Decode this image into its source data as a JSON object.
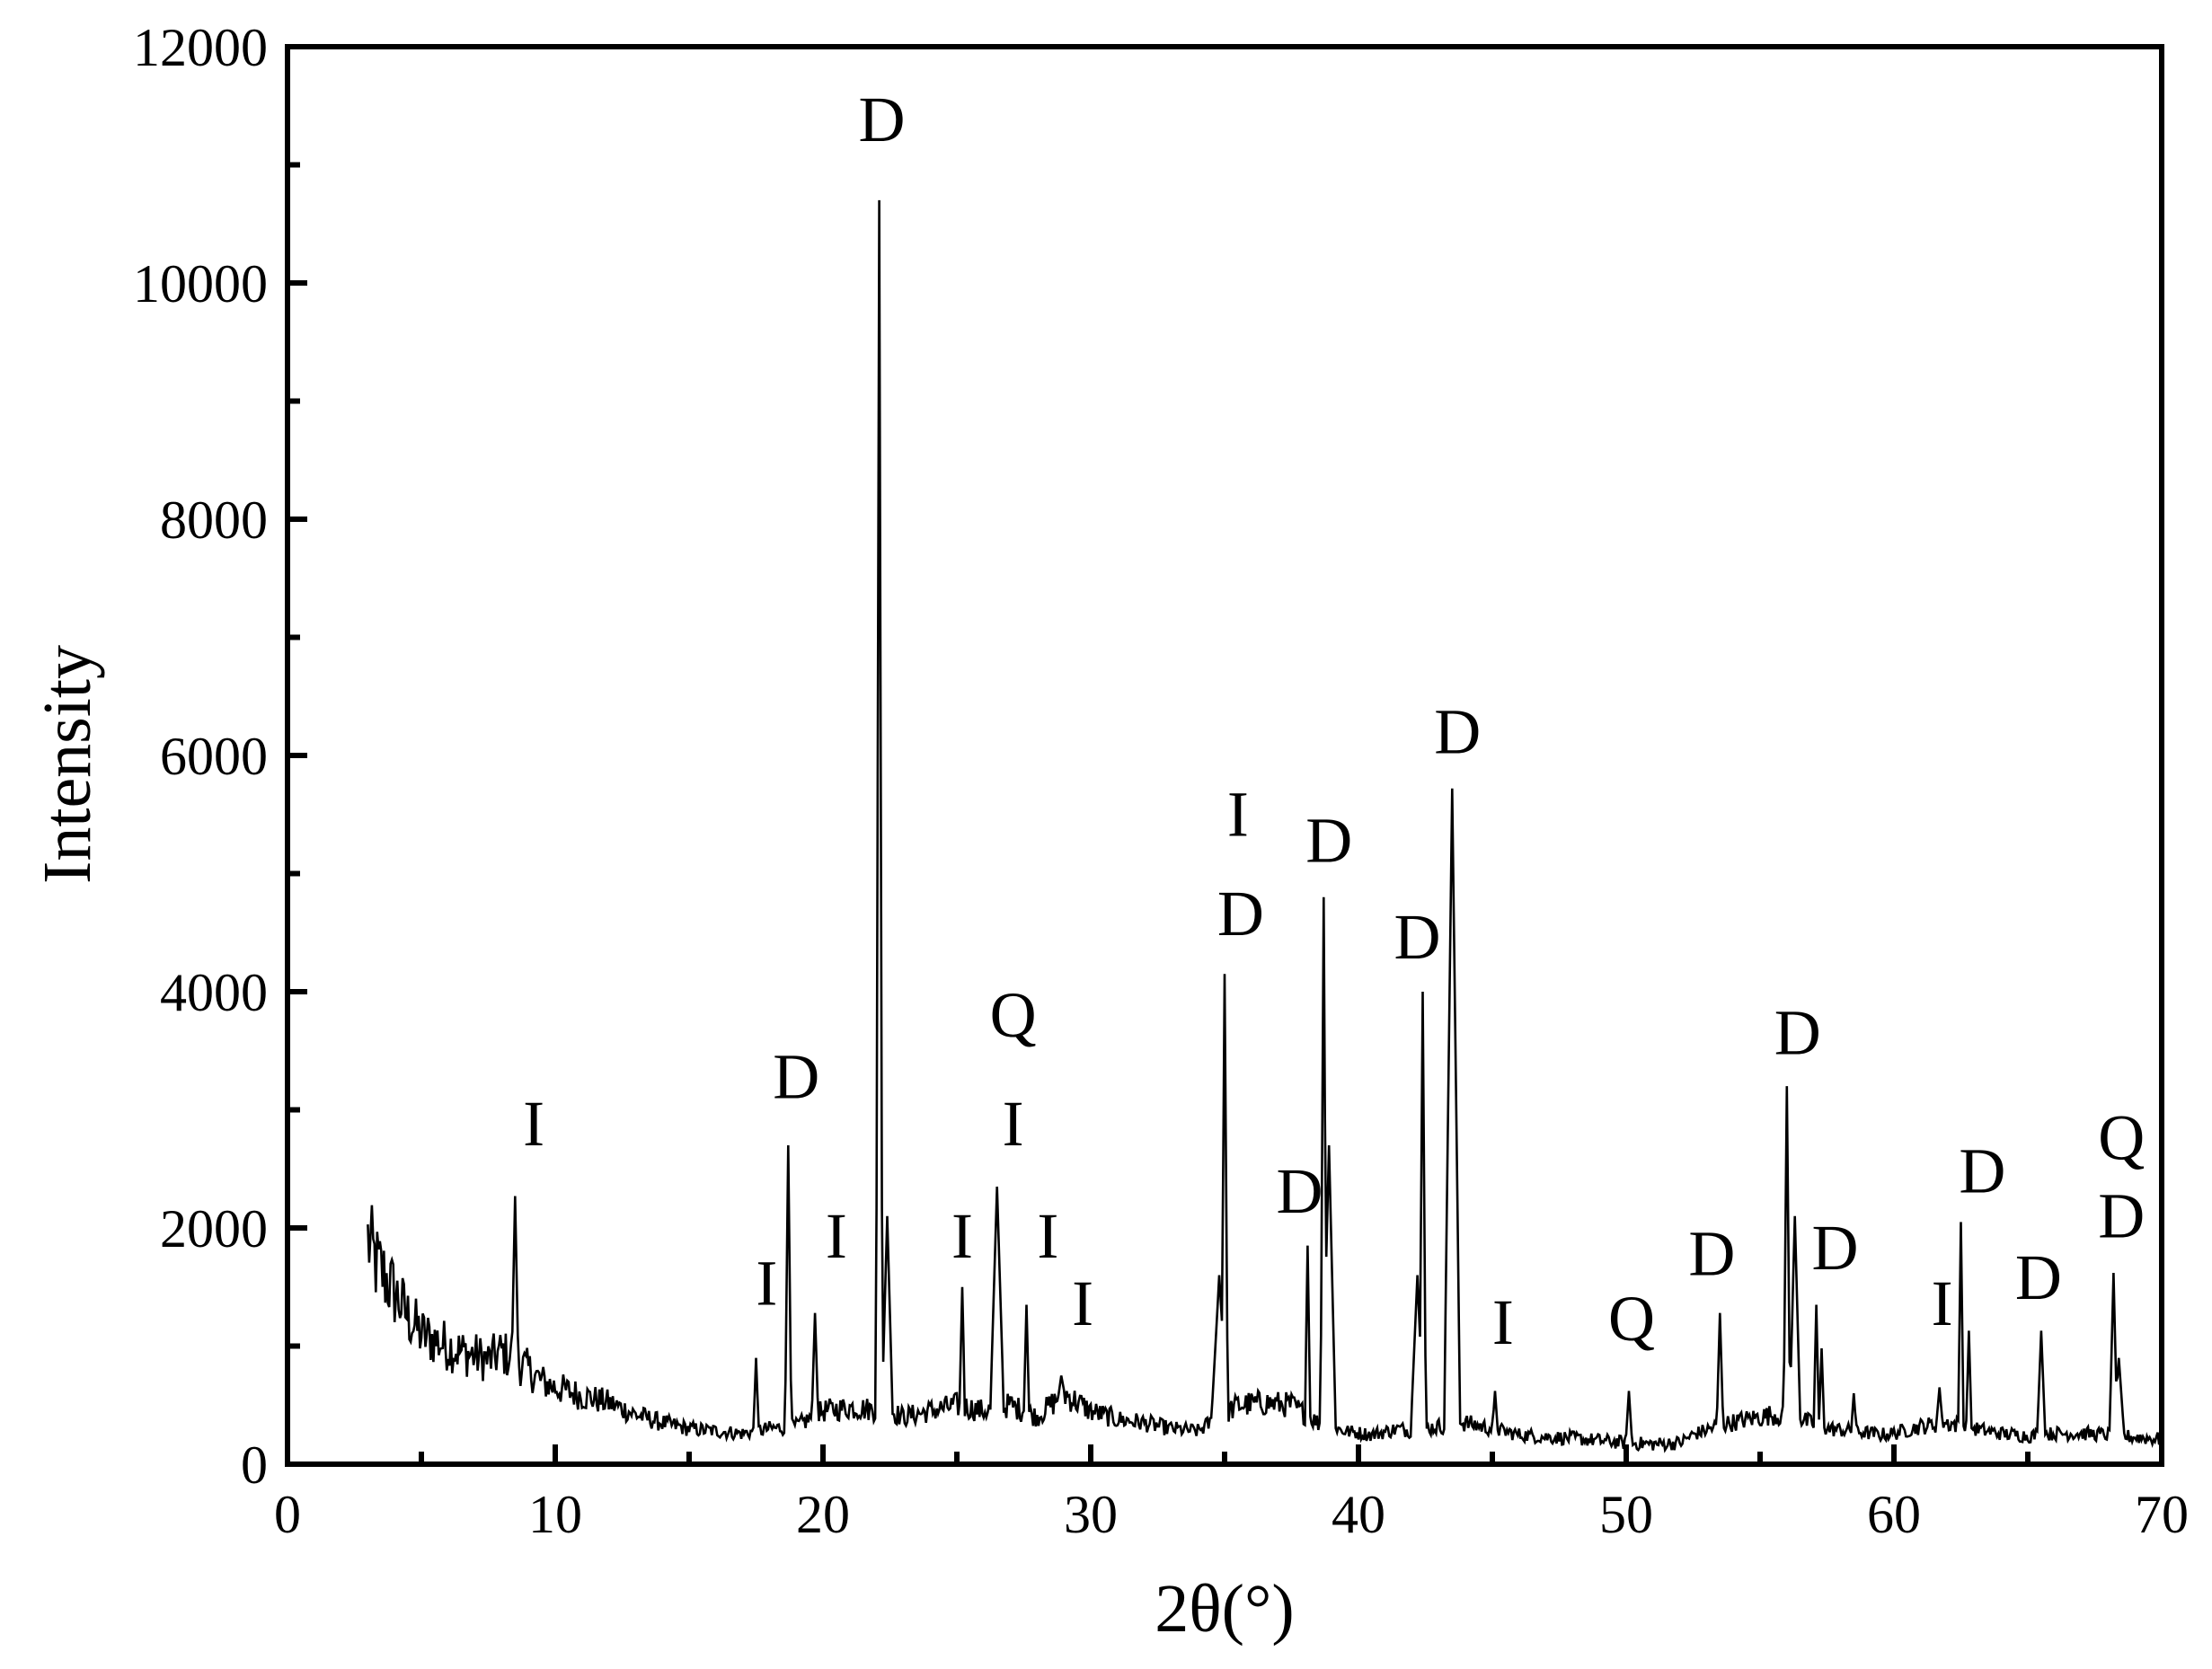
{
  "chart_data": {
    "type": "line",
    "title": "",
    "xlabel": "2θ(°)",
    "ylabel": "Intensity",
    "xlim": [
      0,
      70
    ],
    "ylim": [
      0,
      12000
    ],
    "xticks": [
      0,
      10,
      20,
      30,
      40,
      50,
      60,
      70
    ],
    "yticks": [
      0,
      2000,
      4000,
      6000,
      8000,
      10000,
      12000
    ],
    "grid": false,
    "legend": "none",
    "line_color": "#000000",
    "baseline": [
      [
        3.0,
        1900
      ],
      [
        3.3,
        1700
      ],
      [
        3.6,
        1600
      ],
      [
        4.0,
        1450
      ],
      [
        4.5,
        1250
      ],
      [
        5.0,
        1100
      ],
      [
        5.5,
        1050
      ],
      [
        6.0,
        1000
      ],
      [
        6.5,
        950
      ],
      [
        7.0,
        920
      ],
      [
        7.5,
        880
      ],
      [
        8.0,
        950
      ],
      [
        9.0,
        800
      ],
      [
        9.5,
        700
      ],
      [
        10.0,
        650
      ],
      [
        11.0,
        580
      ],
      [
        12.0,
        520
      ],
      [
        13.0,
        420
      ],
      [
        14.0,
        350
      ],
      [
        15.0,
        300
      ],
      [
        16.0,
        280
      ],
      [
        17.0,
        260
      ],
      [
        18.0,
        300
      ],
      [
        19.0,
        320
      ],
      [
        20.0,
        450
      ],
      [
        21.0,
        480
      ],
      [
        22.5,
        450
      ],
      [
        23.0,
        400
      ],
      [
        24.0,
        450
      ],
      [
        25.0,
        500
      ],
      [
        26.0,
        450
      ],
      [
        27.0,
        500
      ],
      [
        28.0,
        400
      ],
      [
        29.0,
        600
      ],
      [
        30.0,
        450
      ],
      [
        31.0,
        380
      ],
      [
        32.0,
        350
      ],
      [
        33.0,
        300
      ],
      [
        34.0,
        280
      ],
      [
        35.5,
        500
      ],
      [
        36.5,
        520
      ],
      [
        37.5,
        500
      ],
      [
        38.5,
        350
      ],
      [
        39.5,
        280
      ],
      [
        40.5,
        250
      ],
      [
        41.5,
        300
      ],
      [
        42.0,
        280
      ],
      [
        43.0,
        320
      ],
      [
        44.0,
        350
      ],
      [
        45.0,
        300
      ],
      [
        46.0,
        250
      ],
      [
        47.0,
        230
      ],
      [
        48.0,
        220
      ],
      [
        49.0,
        200
      ],
      [
        50.0,
        180
      ],
      [
        51.0,
        170
      ],
      [
        52.0,
        180
      ],
      [
        52.5,
        250
      ],
      [
        53.5,
        330
      ],
      [
        54.5,
        380
      ],
      [
        55.5,
        420
      ],
      [
        56.5,
        380
      ],
      [
        57.5,
        300
      ],
      [
        58.5,
        280
      ],
      [
        59.5,
        250
      ],
      [
        60.0,
        260
      ],
      [
        61.0,
        320
      ],
      [
        62.0,
        350
      ],
      [
        63.0,
        300
      ],
      [
        64.0,
        260
      ],
      [
        65.0,
        240
      ],
      [
        66.0,
        260
      ],
      [
        67.0,
        260
      ],
      [
        68.0,
        250
      ],
      [
        69.0,
        230
      ],
      [
        70.0,
        210
      ]
    ],
    "peaks": [
      {
        "x": 8.5,
        "y": 2270,
        "w": 0.12
      },
      {
        "x": 17.5,
        "y": 900,
        "w": 0.1
      },
      {
        "x": 18.7,
        "y": 2700,
        "w": 0.12
      },
      {
        "x": 19.7,
        "y": 1280,
        "w": 0.12
      },
      {
        "x": 22.1,
        "y": 10700,
        "w": 0.12
      },
      {
        "x": 22.4,
        "y": 2100,
        "w": 0.2
      },
      {
        "x": 25.2,
        "y": 1500,
        "w": 0.1
      },
      {
        "x": 26.5,
        "y": 2350,
        "w": 0.25
      },
      {
        "x": 27.6,
        "y": 1350,
        "w": 0.1
      },
      {
        "x": 28.9,
        "y": 750,
        "w": 0.12
      },
      {
        "x": 35.0,
        "y": 4150,
        "w": 0.12
      },
      {
        "x": 34.8,
        "y": 1600,
        "w": 0.3
      },
      {
        "x": 38.1,
        "y": 1850,
        "w": 0.1
      },
      {
        "x": 38.7,
        "y": 4800,
        "w": 0.12
      },
      {
        "x": 38.9,
        "y": 2700,
        "w": 0.25
      },
      {
        "x": 42.4,
        "y": 4000,
        "w": 0.12
      },
      {
        "x": 42.2,
        "y": 1600,
        "w": 0.25
      },
      {
        "x": 43.5,
        "y": 5720,
        "w": 0.3
      },
      {
        "x": 45.1,
        "y": 620,
        "w": 0.1
      },
      {
        "x": 50.1,
        "y": 620,
        "w": 0.12
      },
      {
        "x": 53.5,
        "y": 1280,
        "w": 0.12
      },
      {
        "x": 56.0,
        "y": 3200,
        "w": 0.12
      },
      {
        "x": 56.3,
        "y": 2100,
        "w": 0.2
      },
      {
        "x": 57.1,
        "y": 1350,
        "w": 0.1
      },
      {
        "x": 57.3,
        "y": 980,
        "w": 0.1
      },
      {
        "x": 58.5,
        "y": 600,
        "w": 0.1
      },
      {
        "x": 61.7,
        "y": 650,
        "w": 0.12
      },
      {
        "x": 62.5,
        "y": 2050,
        "w": 0.1
      },
      {
        "x": 62.8,
        "y": 1130,
        "w": 0.1
      },
      {
        "x": 65.5,
        "y": 1130,
        "w": 0.15
      },
      {
        "x": 68.2,
        "y": 1620,
        "w": 0.15
      },
      {
        "x": 68.4,
        "y": 900,
        "w": 0.2
      }
    ],
    "annotations": [
      {
        "label": "I",
        "x": 9.2,
        "y": 2700
      },
      {
        "label": "I",
        "x": 17.9,
        "y": 1350
      },
      {
        "label": "D",
        "x": 19.0,
        "y": 3100
      },
      {
        "label": "I",
        "x": 20.5,
        "y": 1750
      },
      {
        "label": "D",
        "x": 22.2,
        "y": 11200
      },
      {
        "label": "I",
        "x": 25.2,
        "y": 1750
      },
      {
        "label": "Q",
        "x": 27.1,
        "y": 3620
      },
      {
        "label": "I",
        "x": 27.1,
        "y": 2700
      },
      {
        "label": "I",
        "x": 28.4,
        "y": 1750
      },
      {
        "label": "I",
        "x": 29.7,
        "y": 1180
      },
      {
        "label": "D",
        "x": 35.6,
        "y": 4480
      },
      {
        "label": "I",
        "x": 35.5,
        "y": 5320
      },
      {
        "label": "D",
        "x": 37.8,
        "y": 2130
      },
      {
        "label": "D",
        "x": 38.9,
        "y": 5100
      },
      {
        "label": "D",
        "x": 42.2,
        "y": 4280
      },
      {
        "label": "D",
        "x": 43.7,
        "y": 6020
      },
      {
        "label": "I",
        "x": 45.4,
        "y": 1020
      },
      {
        "label": "Q",
        "x": 50.2,
        "y": 1050
      },
      {
        "label": "D",
        "x": 53.2,
        "y": 1600
      },
      {
        "label": "D",
        "x": 56.4,
        "y": 3470
      },
      {
        "label": "D",
        "x": 57.8,
        "y": 1650
      },
      {
        "label": "I",
        "x": 61.8,
        "y": 1180
      },
      {
        "label": "D",
        "x": 63.3,
        "y": 2300
      },
      {
        "label": "D",
        "x": 65.4,
        "y": 1400
      },
      {
        "label": "Q",
        "x": 68.5,
        "y": 2580
      },
      {
        "label": "D",
        "x": 68.5,
        "y": 1920
      }
    ]
  }
}
